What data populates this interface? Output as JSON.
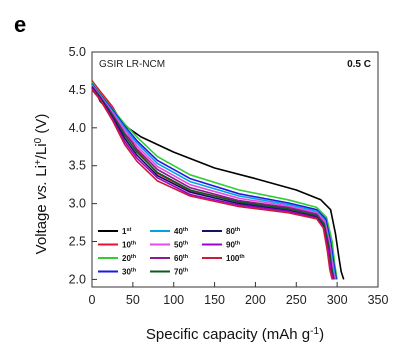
{
  "panel_label": "e",
  "chart_data": {
    "type": "line",
    "sample_label": "GSIR LR-NCM",
    "rate_label": "0.5 C",
    "xlabel": "Specific capacity (mAh g^-1)",
    "ylabel": "Voltage vs. Li+/Li0 (V)",
    "xlim": [
      0,
      350
    ],
    "ylim": [
      1.9,
      5.0
    ],
    "x_ticks": [
      0,
      50,
      100,
      150,
      200,
      250,
      300,
      350
    ],
    "y_ticks": [
      2.0,
      2.5,
      3.0,
      3.5,
      4.0,
      4.5,
      5.0
    ],
    "grid": false,
    "legend_position": "bottom-left",
    "series": [
      {
        "name": "1st",
        "color": "#000000",
        "x": [
          0,
          10,
          25,
          40,
          60,
          100,
          150,
          200,
          250,
          280,
          292,
          298,
          302,
          305,
          308
        ],
        "y": [
          4.58,
          4.35,
          4.18,
          4.03,
          3.88,
          3.68,
          3.47,
          3.33,
          3.18,
          3.05,
          2.92,
          2.6,
          2.3,
          2.1,
          2.0
        ]
      },
      {
        "name": "10th",
        "color": "#e8112d",
        "x": [
          0,
          10,
          25,
          40,
          55,
          80,
          120,
          180,
          240,
          275,
          285,
          291,
          294,
          297
        ],
        "y": [
          4.62,
          4.48,
          4.28,
          4.0,
          3.7,
          3.4,
          3.17,
          3.03,
          2.93,
          2.83,
          2.7,
          2.4,
          2.15,
          2.0
        ]
      },
      {
        "name": "20th",
        "color": "#33cc33",
        "x": [
          0,
          10,
          25,
          40,
          55,
          80,
          120,
          180,
          240,
          275,
          287,
          294,
          297,
          300
        ],
        "y": [
          4.6,
          4.45,
          4.25,
          4.05,
          3.88,
          3.62,
          3.38,
          3.18,
          3.05,
          2.95,
          2.82,
          2.5,
          2.2,
          2.0
        ]
      },
      {
        "name": "30th",
        "color": "#1a1ae6",
        "x": [
          0,
          10,
          25,
          40,
          55,
          80,
          120,
          180,
          240,
          275,
          286,
          292,
          296,
          299
        ],
        "y": [
          4.58,
          4.44,
          4.24,
          4.02,
          3.83,
          3.57,
          3.33,
          3.13,
          3.01,
          2.92,
          2.8,
          2.5,
          2.2,
          2.0
        ]
      },
      {
        "name": "40th",
        "color": "#00a3e0",
        "x": [
          0,
          10,
          25,
          40,
          55,
          80,
          120,
          180,
          240,
          275,
          285,
          291,
          295,
          298
        ],
        "y": [
          4.57,
          4.43,
          4.22,
          4.0,
          3.8,
          3.53,
          3.29,
          3.1,
          2.99,
          2.9,
          2.78,
          2.48,
          2.2,
          2.0
        ]
      },
      {
        "name": "50th",
        "color": "#e64de6",
        "x": [
          0,
          10,
          25,
          40,
          55,
          80,
          120,
          180,
          240,
          275,
          285,
          291,
          294,
          297
        ],
        "y": [
          4.56,
          4.42,
          4.2,
          3.97,
          3.76,
          3.49,
          3.25,
          3.07,
          2.97,
          2.88,
          2.76,
          2.46,
          2.2,
          2.0
        ]
      },
      {
        "name": "60th",
        "color": "#8c1a8c",
        "x": [
          0,
          10,
          25,
          40,
          55,
          80,
          120,
          180,
          240,
          275,
          284,
          290,
          293,
          296
        ],
        "y": [
          4.55,
          4.41,
          4.18,
          3.93,
          3.72,
          3.45,
          3.21,
          3.04,
          2.95,
          2.86,
          2.74,
          2.44,
          2.18,
          2.0
        ]
      },
      {
        "name": "70th",
        "color": "#0a5c1e",
        "x": [
          0,
          10,
          25,
          40,
          55,
          80,
          120,
          180,
          240,
          275,
          284,
          290,
          293,
          296
        ],
        "y": [
          4.54,
          4.4,
          4.16,
          3.9,
          3.68,
          3.41,
          3.18,
          3.02,
          2.93,
          2.84,
          2.72,
          2.42,
          2.16,
          2.0
        ]
      },
      {
        "name": "80th",
        "color": "#121266",
        "x": [
          0,
          10,
          25,
          40,
          55,
          80,
          120,
          180,
          240,
          275,
          283,
          289,
          292,
          295
        ],
        "y": [
          4.53,
          4.39,
          4.14,
          3.86,
          3.64,
          3.37,
          3.15,
          3.0,
          2.91,
          2.82,
          2.7,
          2.4,
          2.15,
          2.0
        ]
      },
      {
        "name": "90th",
        "color": "#a000cc",
        "x": [
          0,
          10,
          25,
          40,
          55,
          80,
          120,
          180,
          240,
          275,
          283,
          289,
          292,
          295
        ],
        "y": [
          4.52,
          4.38,
          4.12,
          3.82,
          3.6,
          3.34,
          3.12,
          2.98,
          2.9,
          2.81,
          2.69,
          2.39,
          2.14,
          2.0
        ]
      },
      {
        "name": "100th",
        "color": "#cc1a3c",
        "x": [
          0,
          10,
          25,
          40,
          55,
          80,
          120,
          180,
          240,
          275,
          283,
          288,
          291,
          294
        ],
        "y": [
          4.5,
          4.37,
          4.1,
          3.78,
          3.56,
          3.3,
          3.1,
          2.96,
          2.88,
          2.8,
          2.68,
          2.38,
          2.13,
          2.0
        ]
      }
    ]
  }
}
